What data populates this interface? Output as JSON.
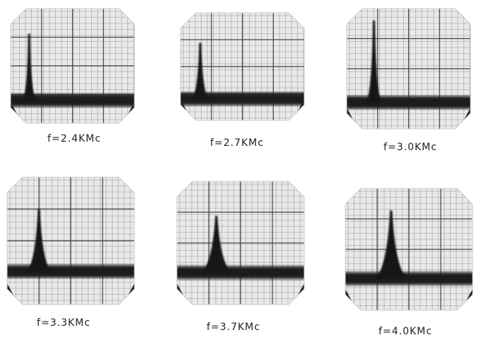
{
  "panels": [
    {
      "caption": "f=2.4KMc"
    },
    {
      "caption": "f=2.7KMc"
    },
    {
      "caption": "f=3.0KMc"
    },
    {
      "caption": "f=3.3KMc"
    },
    {
      "caption": "f=3.7KMc"
    },
    {
      "caption": "f=4.0KMc"
    }
  ]
}
